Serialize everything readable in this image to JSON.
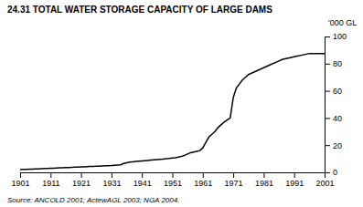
{
  "chart_data": {
    "type": "line",
    "title": "24.31  TOTAL WATER STORAGE CAPACITY OF LARGE DAMS",
    "ylabel": "'000 GL",
    "annotations": [
      "Source: ANCOLD 2001; ActewAGL 2003; NGA 2004."
    ],
    "color": "#000000",
    "xlim": [
      1901,
      2001
    ],
    "ylim": [
      0,
      100
    ],
    "xticks": [
      1901,
      1911,
      1921,
      1931,
      1941,
      1951,
      1961,
      1971,
      1981,
      1991,
      2001
    ],
    "yticks": [
      0,
      20,
      40,
      60,
      80,
      100
    ],
    "x": [
      1901,
      1902,
      1903,
      1904,
      1905,
      1906,
      1907,
      1908,
      1909,
      1910,
      1911,
      1912,
      1913,
      1914,
      1915,
      1916,
      1917,
      1918,
      1919,
      1920,
      1921,
      1922,
      1923,
      1924,
      1925,
      1926,
      1927,
      1928,
      1929,
      1930,
      1931,
      1932,
      1933,
      1934,
      1935,
      1936,
      1937,
      1938,
      1939,
      1940,
      1941,
      1942,
      1943,
      1944,
      1945,
      1946,
      1947,
      1948,
      1949,
      1950,
      1951,
      1952,
      1953,
      1954,
      1955,
      1956,
      1957,
      1958,
      1959,
      1960,
      1961,
      1962,
      1963,
      1964,
      1965,
      1966,
      1967,
      1968,
      1969,
      1970,
      1971,
      1972,
      1973,
      1974,
      1975,
      1976,
      1977,
      1978,
      1979,
      1980,
      1981,
      1982,
      1983,
      1984,
      1985,
      1986,
      1987,
      1988,
      1989,
      1990,
      1991,
      1992,
      1993,
      1994,
      1995,
      1996,
      1997,
      1998,
      1999,
      2000,
      2001
    ],
    "values": [
      2.0,
      2.1,
      2.2,
      2.3,
      2.4,
      2.5,
      2.6,
      2.7,
      2.8,
      2.9,
      3.0,
      3.1,
      3.2,
      3.3,
      3.4,
      3.5,
      3.6,
      3.7,
      3.8,
      3.9,
      4.0,
      4.1,
      4.2,
      4.3,
      4.4,
      4.5,
      4.6,
      4.7,
      4.8,
      4.9,
      5.0,
      5.2,
      5.4,
      5.6,
      6.5,
      7.0,
      7.5,
      7.8,
      8.0,
      8.2,
      8.4,
      8.6,
      8.8,
      9.0,
      9.2,
      9.4,
      9.6,
      9.8,
      10.0,
      10.2,
      10.5,
      10.8,
      11.2,
      11.8,
      12.5,
      13.5,
      14.5,
      15.0,
      15.5,
      16.0,
      18.0,
      22.0,
      26.0,
      28.0,
      30.0,
      33.0,
      35.0,
      37.0,
      38.5,
      40.0,
      55.0,
      62.0,
      65.0,
      68.0,
      70.0,
      72.0,
      73.0,
      74.0,
      75.0,
      76.0,
      77.0,
      78.0,
      79.0,
      80.0,
      81.0,
      82.0,
      83.0,
      83.5,
      84.0,
      84.5,
      85.0,
      85.5,
      86.0,
      86.5,
      87.0,
      87.5,
      87.5,
      87.5,
      87.5,
      87.5,
      87.5
    ]
  }
}
